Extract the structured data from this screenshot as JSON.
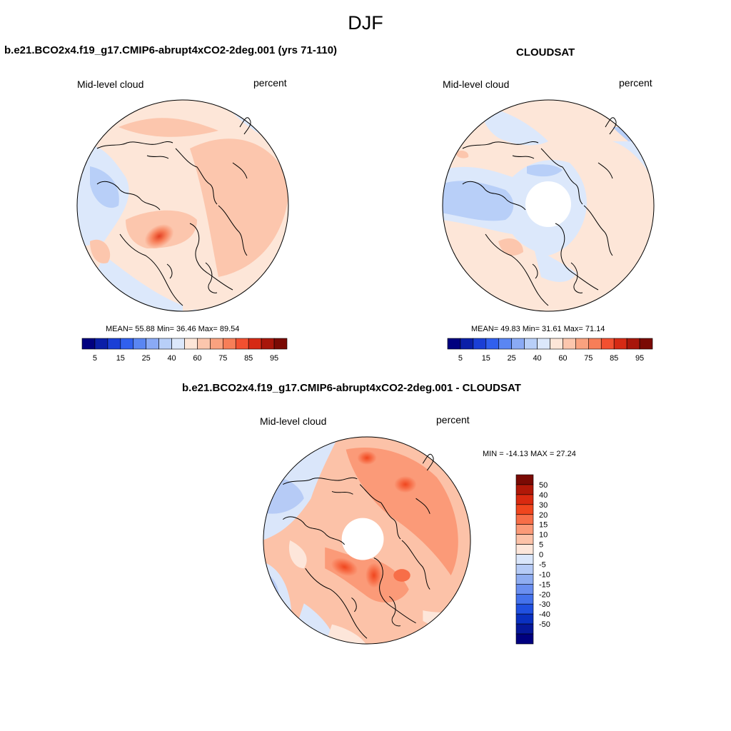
{
  "figure": {
    "title": "DJF"
  },
  "panels": [
    {
      "title": "b.e21.BCO2x4.f19_g17.CMIP6-abrupt4xCO2-2deg.001 (yrs 71-110)",
      "left_label": "Mid-level cloud",
      "right_label": "percent",
      "stats": "MEAN=  55.88  Min=  36.46  Max=  89.54",
      "polar_hole": false
    },
    {
      "title": "CLOUDSAT",
      "left_label": "Mid-level cloud",
      "right_label": "percent",
      "stats": "MEAN=  49.83  Min=  31.61  Max=  71.14",
      "polar_hole": true
    },
    {
      "title": "b.e21.BCO2x4.f19_g17.CMIP6-abrupt4xCO2-2deg.001 - CLOUDSAT",
      "left_label": "Mid-level cloud",
      "right_label": "percent",
      "stats": "MIN = -14.13 MAX =  27.24",
      "polar_hole": true
    }
  ],
  "colorbars": {
    "horizontal": {
      "colors": [
        "#00007f",
        "#0a1fa8",
        "#1a3fd6",
        "#3060ee",
        "#5a86f2",
        "#8aaaf5",
        "#b8cff8",
        "#dce8fb",
        "#fde6d8",
        "#fcc6ad",
        "#faa27f",
        "#f77e58",
        "#f25030",
        "#d62a14",
        "#a8160a",
        "#7a0a04"
      ],
      "labels": [
        "5",
        "15",
        "25",
        "40",
        "60",
        "75",
        "85",
        "95"
      ]
    },
    "vertical": {
      "colors": [
        "#7a0a04",
        "#b01808",
        "#d92a10",
        "#f0461e",
        "#f76e48",
        "#fb9a78",
        "#fcc2a8",
        "#fde6da",
        "#dae6fa",
        "#b6cbf6",
        "#8fadf1",
        "#6a8ff0",
        "#4472ec",
        "#2050e0",
        "#0a30c0",
        "#06189a",
        "#00007f"
      ],
      "labels": [
        "50",
        "40",
        "30",
        "20",
        "15",
        "10",
        "5",
        "0",
        "-5",
        "-10",
        "-15",
        "-20",
        "-30",
        "-40",
        "-50"
      ]
    }
  }
}
